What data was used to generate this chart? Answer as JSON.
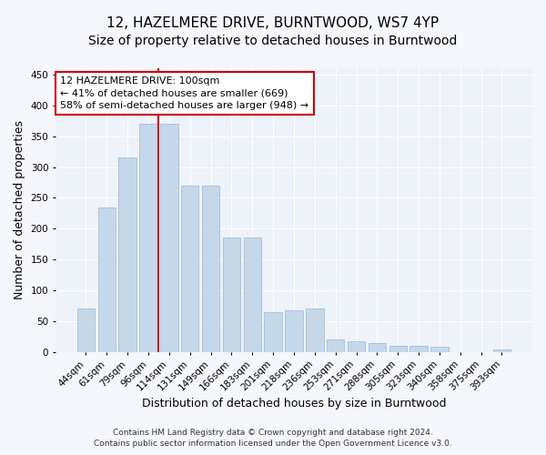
{
  "title": "12, HAZELMERE DRIVE, BURNTWOOD, WS7 4YP",
  "subtitle": "Size of property relative to detached houses in Burntwood",
  "xlabel": "Distribution of detached houses by size in Burntwood",
  "ylabel": "Number of detached properties",
  "categories": [
    "44sqm",
    "61sqm",
    "79sqm",
    "96sqm",
    "114sqm",
    "131sqm",
    "149sqm",
    "166sqm",
    "183sqm",
    "201sqm",
    "218sqm",
    "236sqm",
    "253sqm",
    "271sqm",
    "288sqm",
    "305sqm",
    "323sqm",
    "340sqm",
    "358sqm",
    "375sqm",
    "393sqm"
  ],
  "values": [
    70,
    235,
    315,
    370,
    370,
    270,
    270,
    185,
    185,
    65,
    68,
    70,
    20,
    18,
    15,
    10,
    10,
    9,
    0,
    0,
    5
  ],
  "bar_color": "#c5d8ea",
  "bar_edge_color": "#9ab8d0",
  "vline_x_index": 3,
  "vline_color": "#cc0000",
  "annotation_text": "12 HAZELMERE DRIVE: 100sqm\n← 41% of detached houses are smaller (669)\n58% of semi-detached houses are larger (948) →",
  "annotation_box_facecolor": "#ffffff",
  "annotation_box_edgecolor": "#cc0000",
  "footer_text": "Contains HM Land Registry data © Crown copyright and database right 2024.\nContains public sector information licensed under the Open Government Licence v3.0.",
  "ylim": [
    0,
    460
  ],
  "yticks": [
    0,
    50,
    100,
    150,
    200,
    250,
    300,
    350,
    400,
    450
  ],
  "bg_color": "#eef2f9",
  "grid_color": "#ffffff",
  "fig_facecolor": "#f5f7fd",
  "title_fontsize": 11,
  "subtitle_fontsize": 10,
  "ylabel_fontsize": 9,
  "xlabel_fontsize": 9,
  "tick_fontsize": 7.5,
  "annotation_fontsize": 8,
  "footer_fontsize": 6.5
}
